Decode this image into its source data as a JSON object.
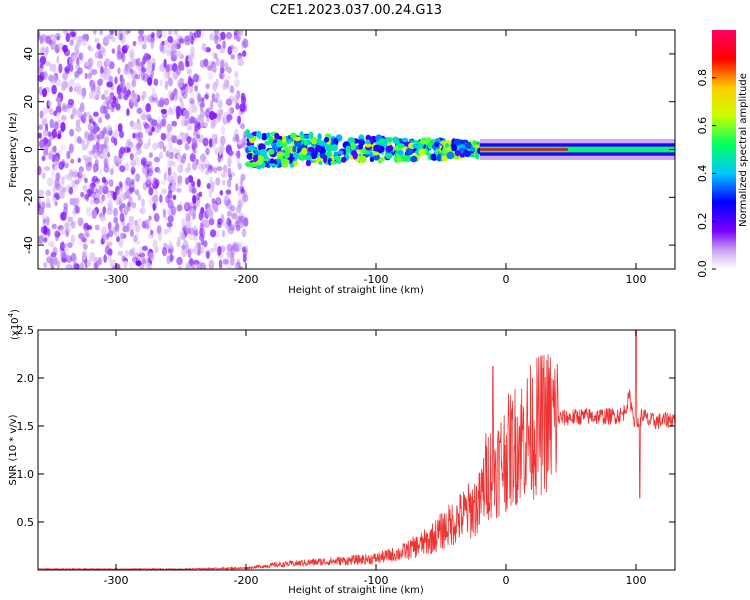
{
  "title": "C2E1.2023.037.00.24.G13",
  "chart_data": [
    {
      "type": "heatmap",
      "xlabel": "Height of straight line (km)",
      "ylabel": "Frequency (Hz)",
      "xlim": [
        -360,
        130
      ],
      "ylim": [
        -50,
        50
      ],
      "xticks": [
        -300,
        -200,
        -100,
        0,
        100
      ],
      "yticks": [
        -40,
        -20,
        0,
        20,
        40
      ],
      "colorbar": {
        "label": "Normalized spectral amplitude",
        "ticks": [
          "0.0",
          "0.2",
          "0.4",
          "0.6",
          "0.8"
        ],
        "range": [
          0,
          1
        ],
        "colors": [
          "#ffffff",
          "#c8a0f0",
          "#7a00ff",
          "#0000ff",
          "#00c8ff",
          "#00ff60",
          "#c8ff00",
          "#ffcc00",
          "#ff0000",
          "#ff0066"
        ]
      },
      "features": [
        {
          "x_range": [
            -360,
            -200
          ],
          "y_range": [
            -50,
            50
          ],
          "kind": "noise",
          "amplitude": 0.15
        },
        {
          "x_range": [
            -200,
            -20
          ],
          "y_center": 0,
          "y_halfwidth": 6,
          "kind": "band",
          "amplitude": 0.5
        },
        {
          "x_range": [
            -20,
            130
          ],
          "y_center": 0,
          "y_halfwidth": 2,
          "kind": "carrier",
          "amplitude": 0.9
        }
      ]
    },
    {
      "type": "line",
      "xlabel": "Height of straight line (km)",
      "ylabel": "SNR (10 * v/v)",
      "yunit": "(x10",
      "yunit_exp": "4",
      "yunit_close": ")",
      "xlim": [
        -360,
        130
      ],
      "ylim": [
        0,
        2.5
      ],
      "xticks": [
        -300,
        -200,
        -100,
        0,
        100
      ],
      "yticks": [
        0.5,
        1.0,
        1.5,
        2.0,
        2.5
      ],
      "color": "#ee3333",
      "series": [
        {
          "x": [
            -360,
            -300,
            -250,
            -200,
            -180,
            -150,
            -120,
            -100,
            -80,
            -60,
            -40,
            -30,
            -20,
            -15,
            -10,
            -5,
            0,
            10,
            20,
            30,
            40,
            60,
            80,
            90,
            95,
            100,
            105,
            110,
            120,
            130
          ],
          "values": [
            0.01,
            0.01,
            0.01,
            0.02,
            0.05,
            0.08,
            0.1,
            0.12,
            0.18,
            0.3,
            0.5,
            0.6,
            0.7,
            1.0,
            1.05,
            1.1,
            1.2,
            1.35,
            1.45,
            1.55,
            1.58,
            1.6,
            1.6,
            1.62,
            1.8,
            1.5,
            1.62,
            1.55,
            1.55,
            1.58
          ]
        }
      ],
      "spikes": [
        {
          "x": -10,
          "y": 2.12
        },
        {
          "x": 100,
          "y": 2.5
        },
        {
          "x": 103,
          "y": 0.75
        }
      ]
    }
  ]
}
